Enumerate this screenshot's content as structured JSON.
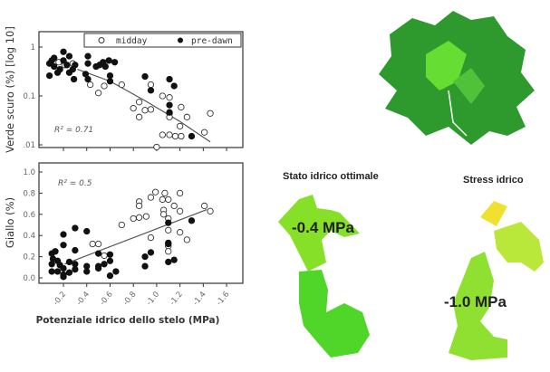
{
  "chart_data": [
    {
      "type": "scatter",
      "ylabel": "Verde scuro (%) [log 10]",
      "yscale": "log",
      "ylim": [
        0.007,
        1.8
      ],
      "xlim": [
        0,
        -1.75
      ],
      "yticks": [
        "1",
        "0.1",
        ".01"
      ],
      "ytick_values": [
        1,
        0.1,
        0.01
      ],
      "annotation": "R² = 0.71",
      "legend": {
        "placement": "top-right",
        "entries": [
          "midday",
          "pre-dawn"
        ]
      },
      "trend": {
        "x": [
          -0.32,
          -0.6,
          -0.9,
          -1.2,
          -1.46
        ],
        "y": [
          0.35,
          0.2,
          0.08,
          0.03,
          0.0115
        ]
      },
      "series": [
        {
          "name": "midday",
          "marker": "open",
          "x": [
            -0.43,
            -0.5,
            -0.55,
            -0.7,
            -0.95,
            -0.8,
            -0.85,
            -0.85,
            -0.9,
            -0.95,
            -1.05,
            -1.11,
            -1.11,
            -1.11,
            -1.21,
            -1.26,
            -1.2,
            -1.05,
            -1.11,
            -1.16,
            -1.21,
            -1.0,
            -1.41,
            -1.46,
            -0.16,
            -0.21,
            -0.28
          ],
          "y": [
            0.17,
            0.115,
            0.16,
            0.17,
            0.17,
            0.056,
            0.075,
            0.037,
            0.051,
            0.053,
            0.1,
            0.093,
            0.044,
            0.037,
            0.059,
            0.037,
            0.024,
            0.016,
            0.016,
            0.015,
            0.015,
            0.009,
            0.018,
            0.044,
            0.49,
            0.43,
            0.46
          ]
        },
        {
          "name": "pre-dawn",
          "marker": "filled",
          "x": [
            -0.2,
            -0.12,
            -0.25,
            -0.41,
            -0.41,
            -0.39,
            -0.41,
            -0.48,
            -0.54,
            -0.59,
            -0.6,
            -0.6,
            -0.64,
            -0.29,
            -0.08,
            -0.9,
            -0.95,
            -1.11,
            -1.15,
            -1.11,
            -1.11,
            -1.3,
            -0.08,
            -0.12,
            -0.17,
            -0.23,
            -0.28,
            -0.15,
            -0.2,
            -0.1,
            -0.25,
            -0.3,
            -0.51,
            -0.56
          ],
          "y": [
            0.8,
            0.6,
            0.65,
            0.65,
            0.46,
            0.28,
            0.22,
            0.4,
            0.49,
            0.53,
            0.26,
            0.2,
            0.49,
            0.22,
            0.26,
            0.25,
            0.13,
            0.22,
            0.16,
            0.065,
            0.046,
            0.015,
            0.46,
            0.4,
            0.35,
            0.43,
            0.35,
            0.3,
            0.53,
            0.53,
            0.3,
            0.43,
            0.43,
            0.4
          ]
        }
      ]
    },
    {
      "type": "scatter",
      "ylabel": "Giallo (%)",
      "xlabel": "Potenziale idrico dello stelo (MPa)",
      "ylim": [
        -0.05,
        1.1
      ],
      "xlim": [
        0,
        -1.75
      ],
      "yticks": [
        "1.0",
        "0.8",
        "0.6",
        "0.4",
        "0.2",
        "0.0"
      ],
      "ytick_values": [
        1.0,
        0.8,
        0.6,
        0.4,
        0.2,
        0.0
      ],
      "xticks": [
        "-0.2",
        "-0.4",
        "-0.6",
        "-0.8",
        "-1.0",
        "-1.2",
        "-1.4",
        "-1.6"
      ],
      "xtick_values": [
        -0.2,
        -0.4,
        -0.6,
        -0.8,
        -1.0,
        -1.2,
        -1.4,
        -1.6
      ],
      "annotation": "R² = 0.5",
      "trend": {
        "x": [
          -0.21,
          -1.43
        ],
        "y": [
          0.13,
          0.645
        ]
      },
      "series": [
        {
          "name": "midday",
          "marker": "open",
          "x": [
            -0.99,
            -1.07,
            -1.2,
            -0.95,
            -1.05,
            -1.1,
            -0.85,
            -0.85,
            -1.15,
            -1.06,
            -1.2,
            -1.06,
            -0.91,
            -0.85,
            -0.8,
            -1.1,
            -0.7,
            -1.1,
            -1.2,
            -0.95,
            -1.26,
            -0.45,
            -0.5,
            -1.1,
            -1.1,
            -0.55,
            -1.41,
            -1.46
          ],
          "y": [
            0.81,
            0.8,
            0.8,
            0.76,
            0.74,
            0.74,
            0.72,
            0.68,
            0.68,
            0.64,
            0.63,
            0.6,
            0.58,
            0.57,
            0.56,
            0.56,
            0.5,
            0.45,
            0.43,
            0.38,
            0.36,
            0.32,
            0.32,
            0.3,
            0.25,
            0.21,
            0.68,
            0.63
          ]
        },
        {
          "name": "pre-dawn",
          "marker": "filled",
          "x": [
            -0.3,
            -0.4,
            -0.2,
            -0.2,
            -0.3,
            -1.1,
            -1.3,
            -1.1,
            -1.1,
            -0.95,
            -0.9,
            -0.9,
            -1.15,
            -1.1,
            -0.5,
            -0.6,
            -0.6,
            -0.55,
            -0.5,
            -0.5,
            -0.65,
            -0.6,
            -0.4,
            -0.4,
            -0.1,
            -0.13,
            -0.11,
            -0.15,
            -0.1,
            -0.17,
            -0.1,
            -0.15,
            -0.2,
            -0.25,
            -0.3,
            -0.2,
            -0.25,
            -0.3,
            -0.2
          ],
          "y": [
            0.47,
            0.44,
            0.41,
            0.31,
            0.26,
            0.52,
            0.54,
            0.33,
            0.32,
            0.24,
            0.2,
            0.11,
            0.17,
            0.15,
            0.23,
            0.22,
            0.16,
            0.13,
            0.11,
            0.09,
            0.06,
            0.02,
            0.11,
            0.06,
            0.23,
            0.25,
            0.18,
            0.16,
            0.13,
            0.12,
            0.06,
            0.06,
            0.03,
            0.05,
            0.08,
            0.09,
            0.15,
            0.13,
            0.01
          ]
        }
      ]
    }
  ],
  "images": {
    "optimal_title": "Stato idrico ottimale",
    "stress_title": "Stress idrico",
    "optimal_value": "-0.4 MPa",
    "stress_value": "-1.0 MPa"
  },
  "colors": {
    "dark_green": "#2e9a2e",
    "light_green": "#66e022",
    "yellow_green": "#b9e83a",
    "yellow": "#f0e030"
  }
}
